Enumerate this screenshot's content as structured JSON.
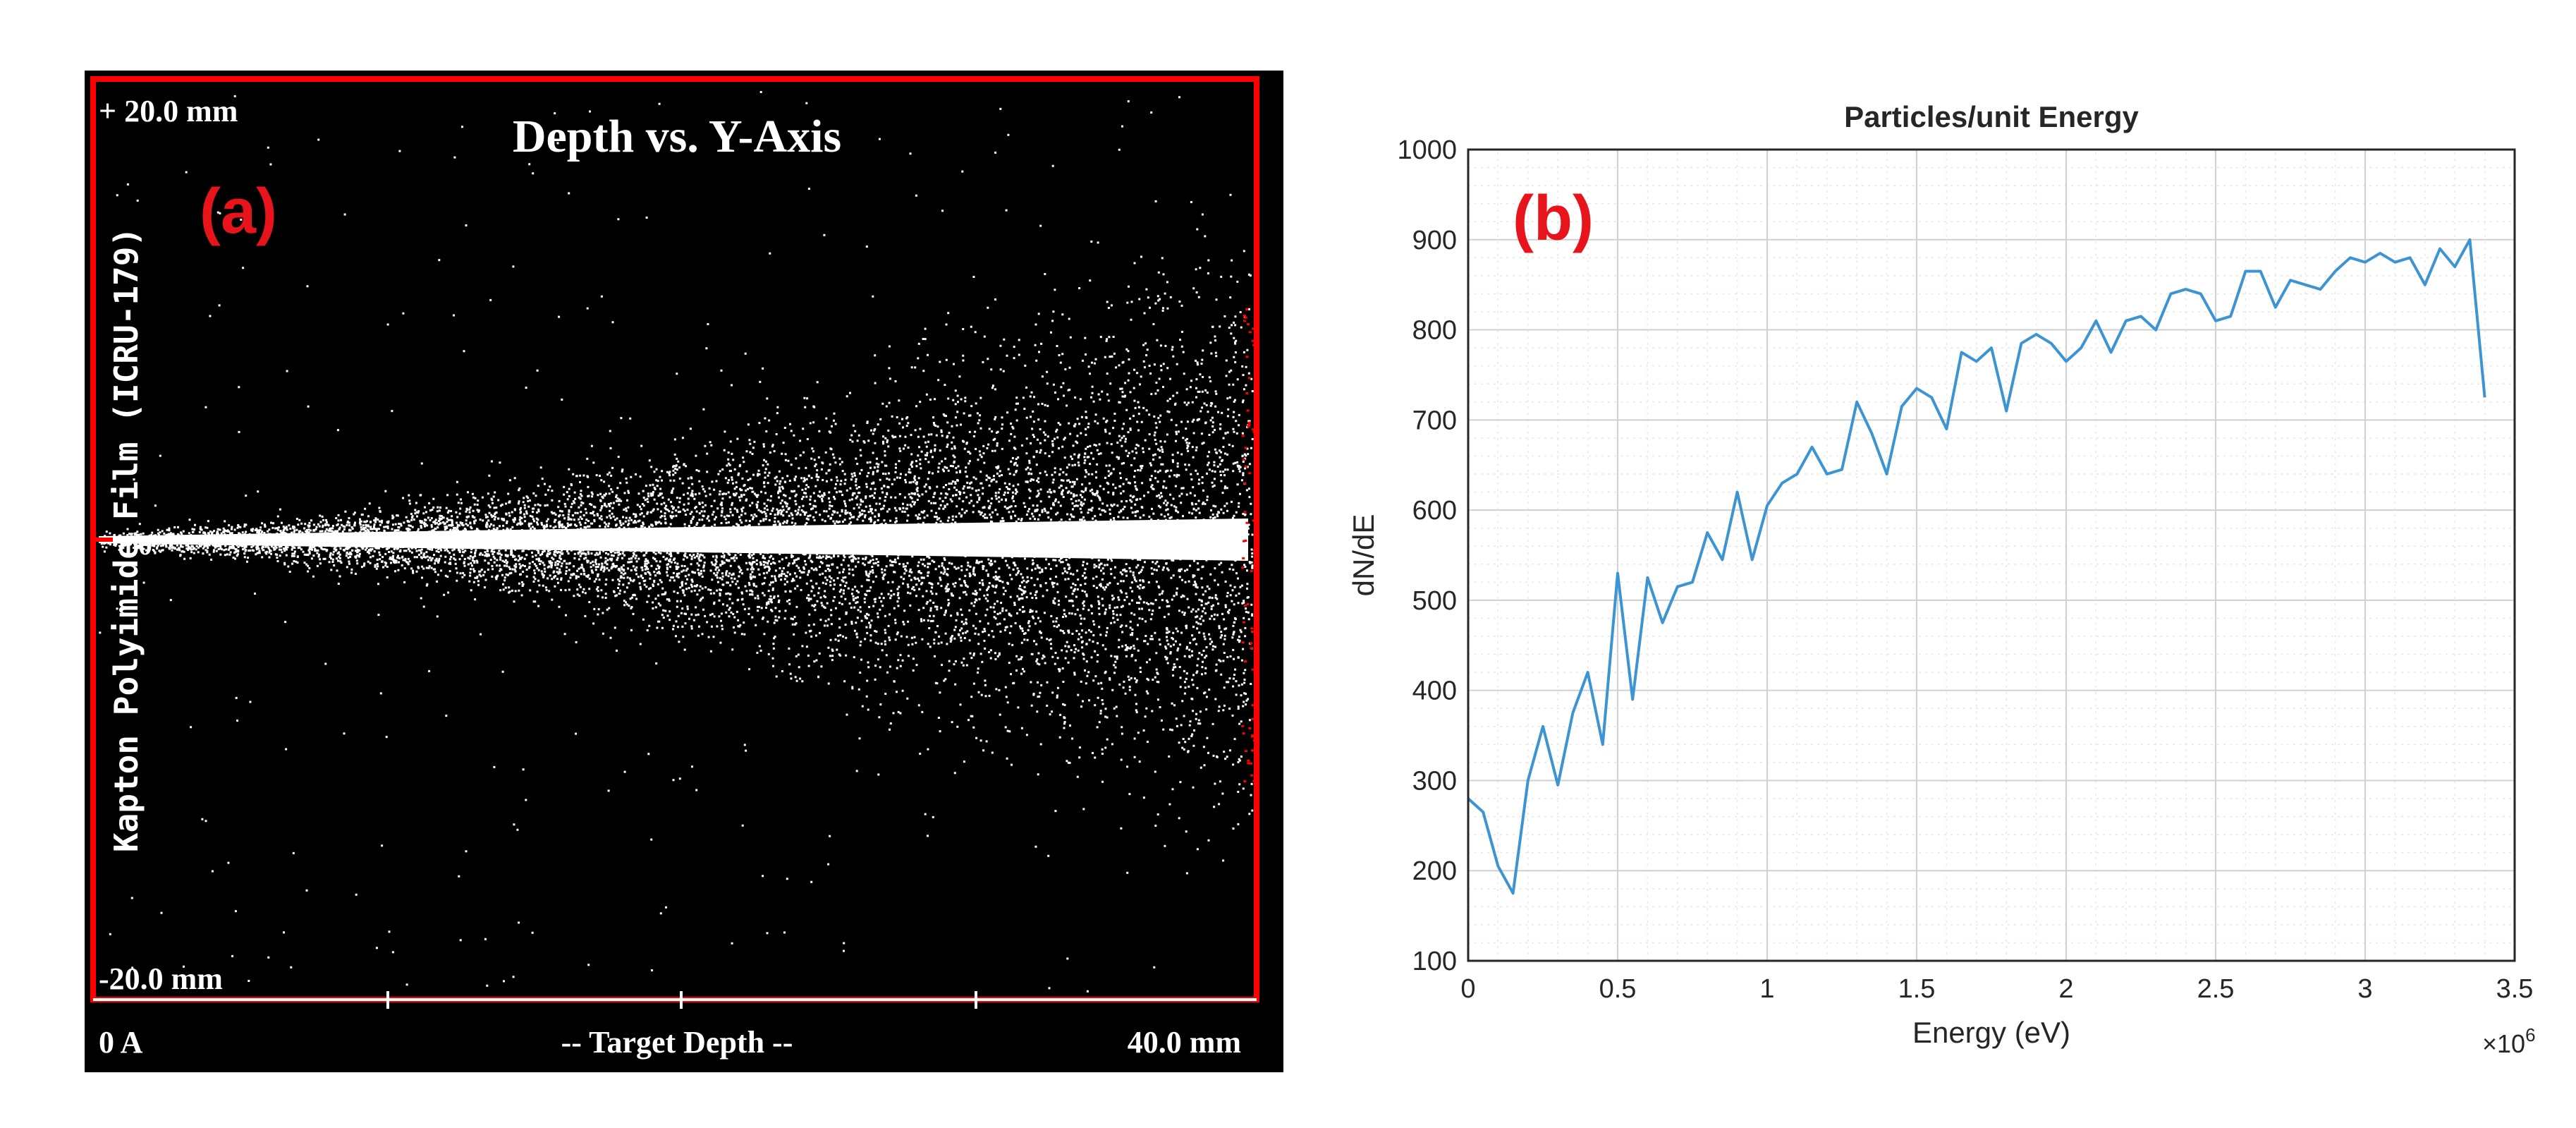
{
  "panels": {
    "a": {
      "tag": "(a)",
      "title": "Depth vs. Y-Axis",
      "y_top_label": "+ 20.0 mm",
      "y_bottom_label": "-20.0 mm",
      "y_mid_label": "0",
      "side_label": "Kapton Polyimide Film (ICRU-179)",
      "x_left_label": "0 A",
      "x_mid_label": "-- Target Depth --",
      "x_right_label": "40.0 mm",
      "colors": {
        "background": "#000000",
        "points": "#ffffff",
        "frame": "#ff0000",
        "tag": "#e8141b"
      }
    },
    "b": {
      "tag": "(b)",
      "colors": {
        "line": "#3d94d3",
        "grid": "#cfcfcf",
        "axis": "#262626",
        "tag": "#e8141b"
      }
    }
  },
  "chart_data": [
    {
      "type": "scatter",
      "title": "Depth vs. Y-Axis",
      "xlabel": "-- Target Depth --",
      "ylabel": "Kapton Polyimide Film (ICRU-179)",
      "xlim_labels": [
        "0 A",
        "40.0 mm"
      ],
      "ylim": [
        -20.0,
        20.0
      ],
      "note": "ion-implantation depth distribution; dense point cloud widening with depth"
    },
    {
      "type": "line",
      "title": "Particles/unit Energy",
      "xlabel": "Energy (eV)",
      "ylabel": "dN/dE",
      "x_multiplier_label": "×10^6",
      "xlim": [
        0,
        3.5
      ],
      "ylim": [
        100,
        1000
      ],
      "xticks": [
        "0",
        "0.5",
        "1",
        "1.5",
        "2",
        "2.5",
        "3",
        "3.5"
      ],
      "yticks": [
        "100",
        "200",
        "300",
        "400",
        "500",
        "600",
        "700",
        "800",
        "900",
        "1000"
      ],
      "grid": true,
      "series": [
        {
          "x": [
            0,
            0.05,
            0.1,
            0.15,
            0.2,
            0.25,
            0.3,
            0.35,
            0.4,
            0.45,
            0.5,
            0.55,
            0.6,
            0.65,
            0.7,
            0.75,
            0.8,
            0.85,
            0.9,
            0.95,
            1.0,
            1.05,
            1.1,
            1.15,
            1.2,
            1.25,
            1.3,
            1.35,
            1.4,
            1.45,
            1.5,
            1.55,
            1.6,
            1.65,
            1.7,
            1.75,
            1.8,
            1.85,
            1.9,
            1.95,
            2.0,
            2.05,
            2.1,
            2.15,
            2.2,
            2.25,
            2.3,
            2.35,
            2.4,
            2.45,
            2.5,
            2.55,
            2.6,
            2.65,
            2.7,
            2.75,
            2.8,
            2.85,
            2.9,
            2.95,
            3.0,
            3.05,
            3.1,
            3.15,
            3.2,
            3.25,
            3.3,
            3.35,
            3.4
          ],
          "values": [
            280,
            265,
            205,
            175,
            300,
            360,
            295,
            375,
            420,
            340,
            530,
            390,
            525,
            475,
            515,
            520,
            575,
            545,
            620,
            545,
            605,
            630,
            640,
            670,
            640,
            645,
            720,
            685,
            640,
            715,
            735,
            725,
            690,
            775,
            765,
            780,
            710,
            785,
            795,
            785,
            765,
            780,
            810,
            775,
            810,
            815,
            800,
            840,
            845,
            840,
            810,
            815,
            865,
            865,
            825,
            855,
            850,
            845,
            865,
            880,
            875,
            885,
            875,
            880,
            850,
            890,
            870,
            900,
            725
          ]
        }
      ]
    }
  ]
}
